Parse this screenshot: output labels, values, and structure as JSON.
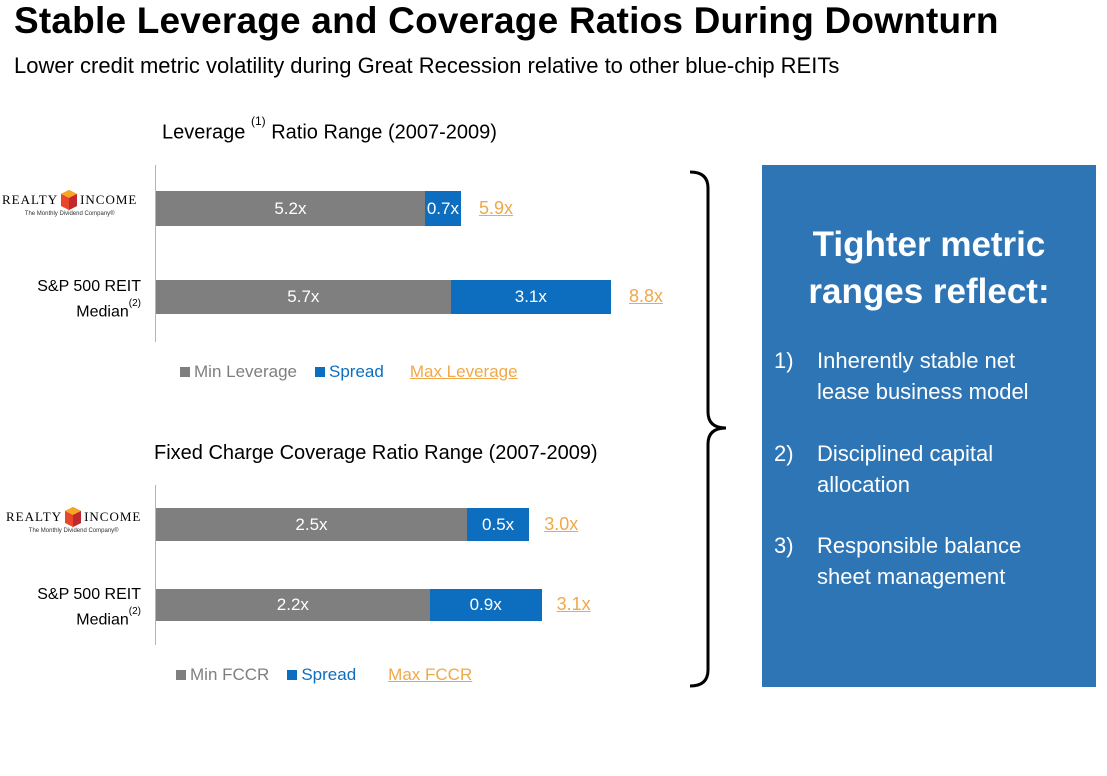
{
  "header": {
    "title": "Stable Leverage and Coverage Ratios During Downturn",
    "subtitle": "Lower credit metric volatility during Great Recession relative to other blue-chip REITs"
  },
  "logo": {
    "word_left": "REALTY",
    "word_right": "INCOME",
    "tagline": "The Monthly Dividend Company®"
  },
  "chart_data": [
    {
      "type": "bar",
      "stacked": true,
      "orientation": "horizontal",
      "title": "Leverage",
      "title_sup": "(1)",
      "title_rest": "Ratio Range (2007-2009)",
      "categories": [
        "Realty Income",
        "S&P 500 REIT Median"
      ],
      "category_sup": [
        "",
        "(2)"
      ],
      "series": [
        {
          "name": "Min Leverage",
          "values": [
            5.2,
            5.7
          ],
          "labels": [
            "5.2x",
            "5.7x"
          ]
        },
        {
          "name": "Spread",
          "values": [
            0.7,
            3.1
          ],
          "labels": [
            "0.7x",
            "3.1x"
          ]
        }
      ],
      "max": {
        "name": "Max Leverage",
        "values": [
          5.9,
          8.8
        ],
        "labels": [
          "5.9x",
          "8.8x"
        ]
      },
      "xlim": [
        0,
        10
      ]
    },
    {
      "type": "bar",
      "stacked": true,
      "orientation": "horizontal",
      "title": "Fixed Charge Coverage Ratio Range (2007-2009)",
      "categories": [
        "Realty Income",
        "S&P 500 REIT Median"
      ],
      "category_sup": [
        "",
        "(2)"
      ],
      "series": [
        {
          "name": "Min FCCR",
          "values": [
            2.5,
            2.2
          ],
          "labels": [
            "2.5x",
            "2.2x"
          ]
        },
        {
          "name": "Spread",
          "values": [
            0.5,
            0.9
          ],
          "labels": [
            "0.5x",
            "0.9x"
          ]
        }
      ],
      "max": {
        "name": "Max FCCR",
        "values": [
          3.0,
          3.1
        ],
        "labels": [
          "3.0x",
          "3.1x"
        ]
      },
      "xlim": [
        0,
        3.6
      ]
    }
  ],
  "row_labels": {
    "line1": "S&P 500 REIT",
    "line2": "Median",
    "sup": "(2)"
  },
  "colors": {
    "min": "#7f7f7f",
    "spread": "#0d6ebf",
    "max": "#f0a848",
    "panel": "#2e75b6"
  },
  "panel": {
    "heading_line1": "Tighter metric",
    "heading_line2": "ranges reflect:",
    "points": [
      {
        "num": "1)",
        "line1": "Inherently stable net",
        "line2": "lease business model"
      },
      {
        "num": "2)",
        "line1": "Disciplined capital",
        "line2": "allocation"
      },
      {
        "num": "3)",
        "line1": "Responsible balance",
        "line2": "sheet management"
      }
    ]
  }
}
